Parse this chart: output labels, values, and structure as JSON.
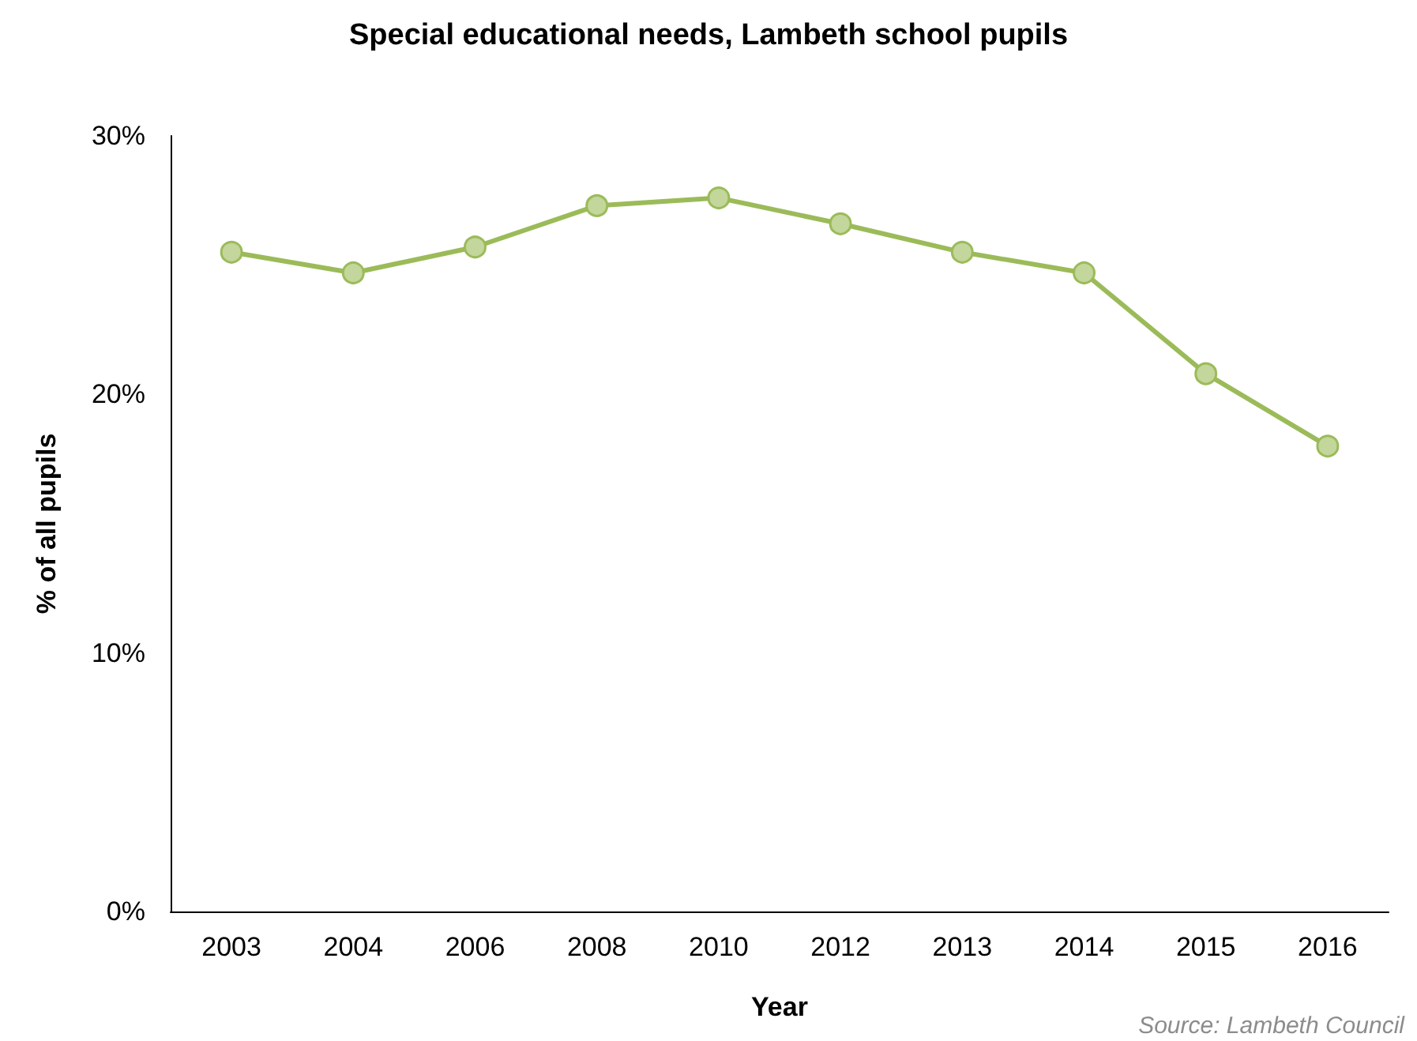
{
  "chart_data": {
    "type": "line",
    "title": "Special educational needs, Lambeth school pupils",
    "xlabel": "Year",
    "ylabel": "% of all pupils",
    "annotations": [
      "Source: Lambeth Council"
    ],
    "categories": [
      "2003",
      "2004",
      "2006",
      "2008",
      "2010",
      "2012",
      "2013",
      "2014",
      "2015",
      "2016"
    ],
    "series": [
      {
        "color": "#9bbb59",
        "values": [
          25.5,
          24.7,
          25.7,
          27.3,
          27.6,
          26.6,
          25.5,
          24.7,
          20.8,
          18.0
        ]
      }
    ],
    "ylim": [
      0,
      30
    ],
    "yticks": [
      {
        "value": 0,
        "label": "0%"
      },
      {
        "value": 10,
        "label": "10%"
      },
      {
        "value": 20,
        "label": "20%"
      },
      {
        "value": 30,
        "label": "30%"
      }
    ],
    "grid": false,
    "marker": "circle",
    "line_style": "solid"
  }
}
